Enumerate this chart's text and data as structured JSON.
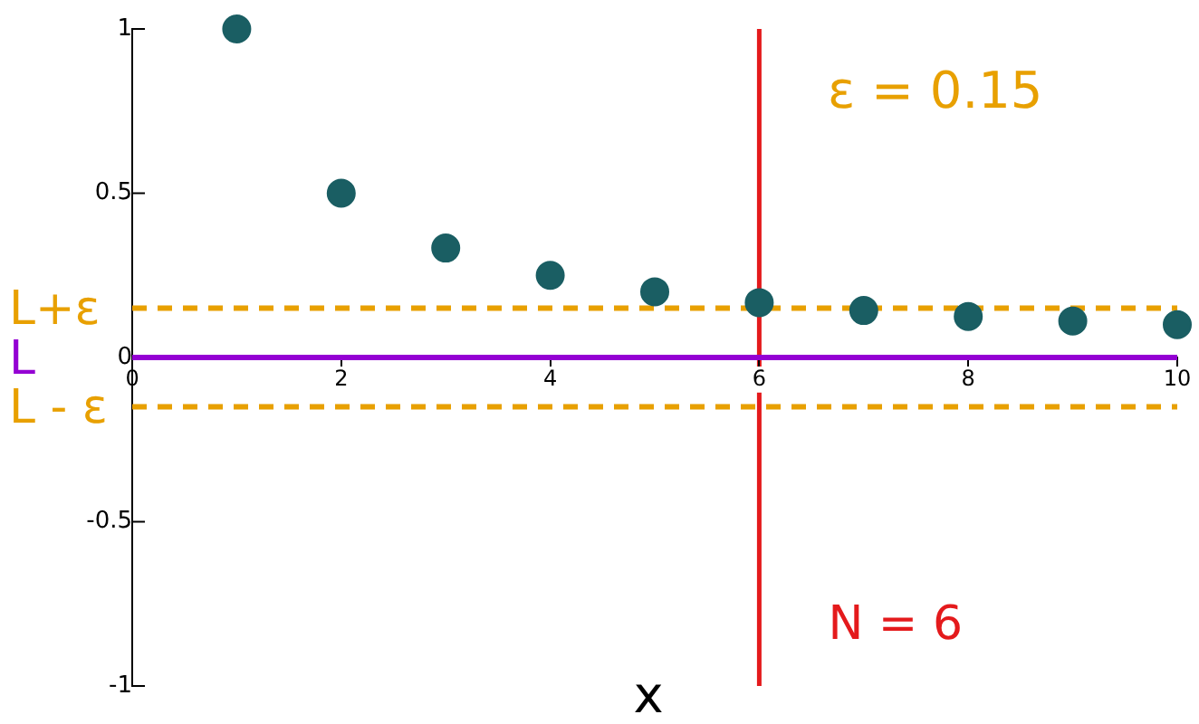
{
  "chart_data": {
    "type": "scatter",
    "xlabel": "x",
    "x": [
      1,
      2,
      3,
      4,
      5,
      6,
      7,
      8,
      9,
      10
    ],
    "series": [
      {
        "color": "#1a5e63",
        "values": [
          1,
          0.5,
          0.333,
          0.25,
          0.2,
          0.167,
          0.143,
          0.125,
          0.111,
          0.1
        ]
      }
    ],
    "xlim": [
      0,
      10
    ],
    "xticks": [
      0,
      2,
      4,
      6,
      8,
      10
    ],
    "ylim": [
      -1,
      1
    ],
    "yticks": [
      -1,
      -0.5,
      0,
      0.5,
      1
    ],
    "grid": false,
    "legend": false,
    "marker": "circle",
    "ref_lines": [
      {
        "axis": "y",
        "value": 0.15,
        "label": "L+ε",
        "color": "#e8a000",
        "line_style": "dashed"
      },
      {
        "axis": "y",
        "value": 0,
        "label": "L",
        "color": "#9400d3",
        "line_style": "solid"
      },
      {
        "axis": "y",
        "value": -0.15,
        "label": "L - ε",
        "color": "#e8a000",
        "line_style": "dashed"
      },
      {
        "axis": "x",
        "value": 6,
        "label": "N = 6",
        "color": "#e41a1c",
        "line_style": "solid"
      }
    ],
    "annotations": [
      "ε = 0.15"
    ]
  }
}
